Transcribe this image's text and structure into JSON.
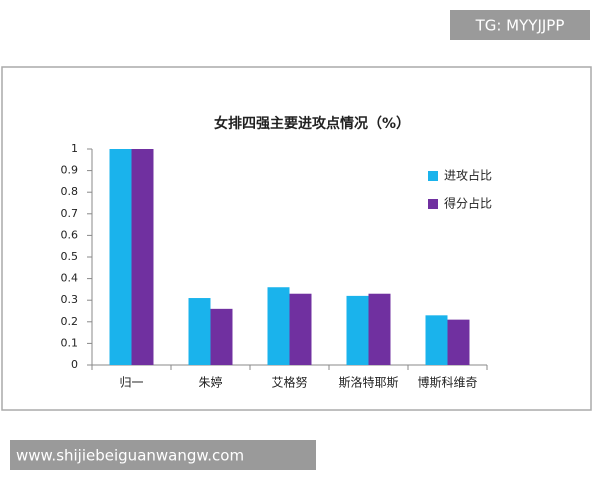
{
  "chart_data": {
    "type": "bar",
    "title": "女排四强主要进攻点情况（%）",
    "categories": [
      "归一",
      "朱婷",
      "艾格努",
      "斯洛特耶斯",
      "博斯科维奇"
    ],
    "series": [
      {
        "name": "进攻占比",
        "color": "#1ab3ec",
        "values": [
          1,
          0.31,
          0.36,
          0.32,
          0.23
        ]
      },
      {
        "name": "得分占比",
        "color": "#7030a0",
        "values": [
          1,
          0.26,
          0.33,
          0.33,
          0.21
        ]
      }
    ],
    "ylim": [
      0,
      1
    ],
    "yticks": [
      0,
      0.1,
      0.2,
      0.3,
      0.4,
      0.5,
      0.6,
      0.7,
      0.8,
      0.9,
      1
    ],
    "grid": false,
    "legend": "right",
    "annotations": [
      "TG: MYYJJPP",
      "www.shijiebeiguanwangw.com"
    ]
  }
}
